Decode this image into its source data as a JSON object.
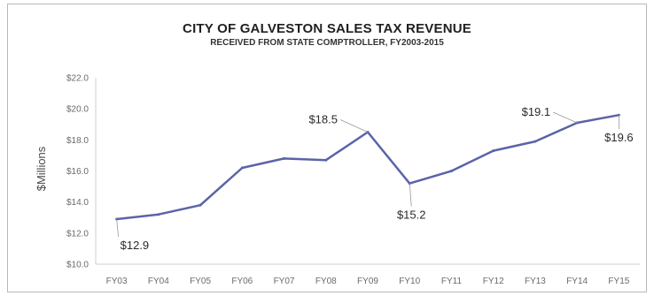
{
  "chart_data": {
    "type": "line",
    "title": "CITY OF GALVESTON SALES TAX REVENUE",
    "subtitle": "RECEIVED FROM STATE COMPTROLLER, FY2003-2015",
    "xlabel": "",
    "ylabel": "$Millions",
    "ylim": [
      10,
      22
    ],
    "ytick_values": [
      10,
      12,
      14,
      16,
      18,
      20,
      22
    ],
    "ytick_labels": [
      "$10.0",
      "$12.0",
      "$14.0",
      "$16.0",
      "$18.0",
      "$20.0",
      "$22.0"
    ],
    "categories": [
      "FY03",
      "FY04",
      "FY05",
      "FY06",
      "FY07",
      "FY08",
      "FY09",
      "FY10",
      "FY11",
      "FY12",
      "FY13",
      "FY14",
      "FY15"
    ],
    "values": [
      12.9,
      13.2,
      13.8,
      16.2,
      16.8,
      16.7,
      18.5,
      15.2,
      16.0,
      17.3,
      17.9,
      19.1,
      19.6
    ],
    "annotations": [
      {
        "index": 0,
        "text": "$12.9"
      },
      {
        "index": 6,
        "text": "$18.5"
      },
      {
        "index": 7,
        "text": "$15.2"
      },
      {
        "index": 11,
        "text": "$19.1"
      },
      {
        "index": 12,
        "text": "$19.6"
      }
    ],
    "grid": false,
    "legend": "none",
    "line_color": "#5b63a8"
  }
}
